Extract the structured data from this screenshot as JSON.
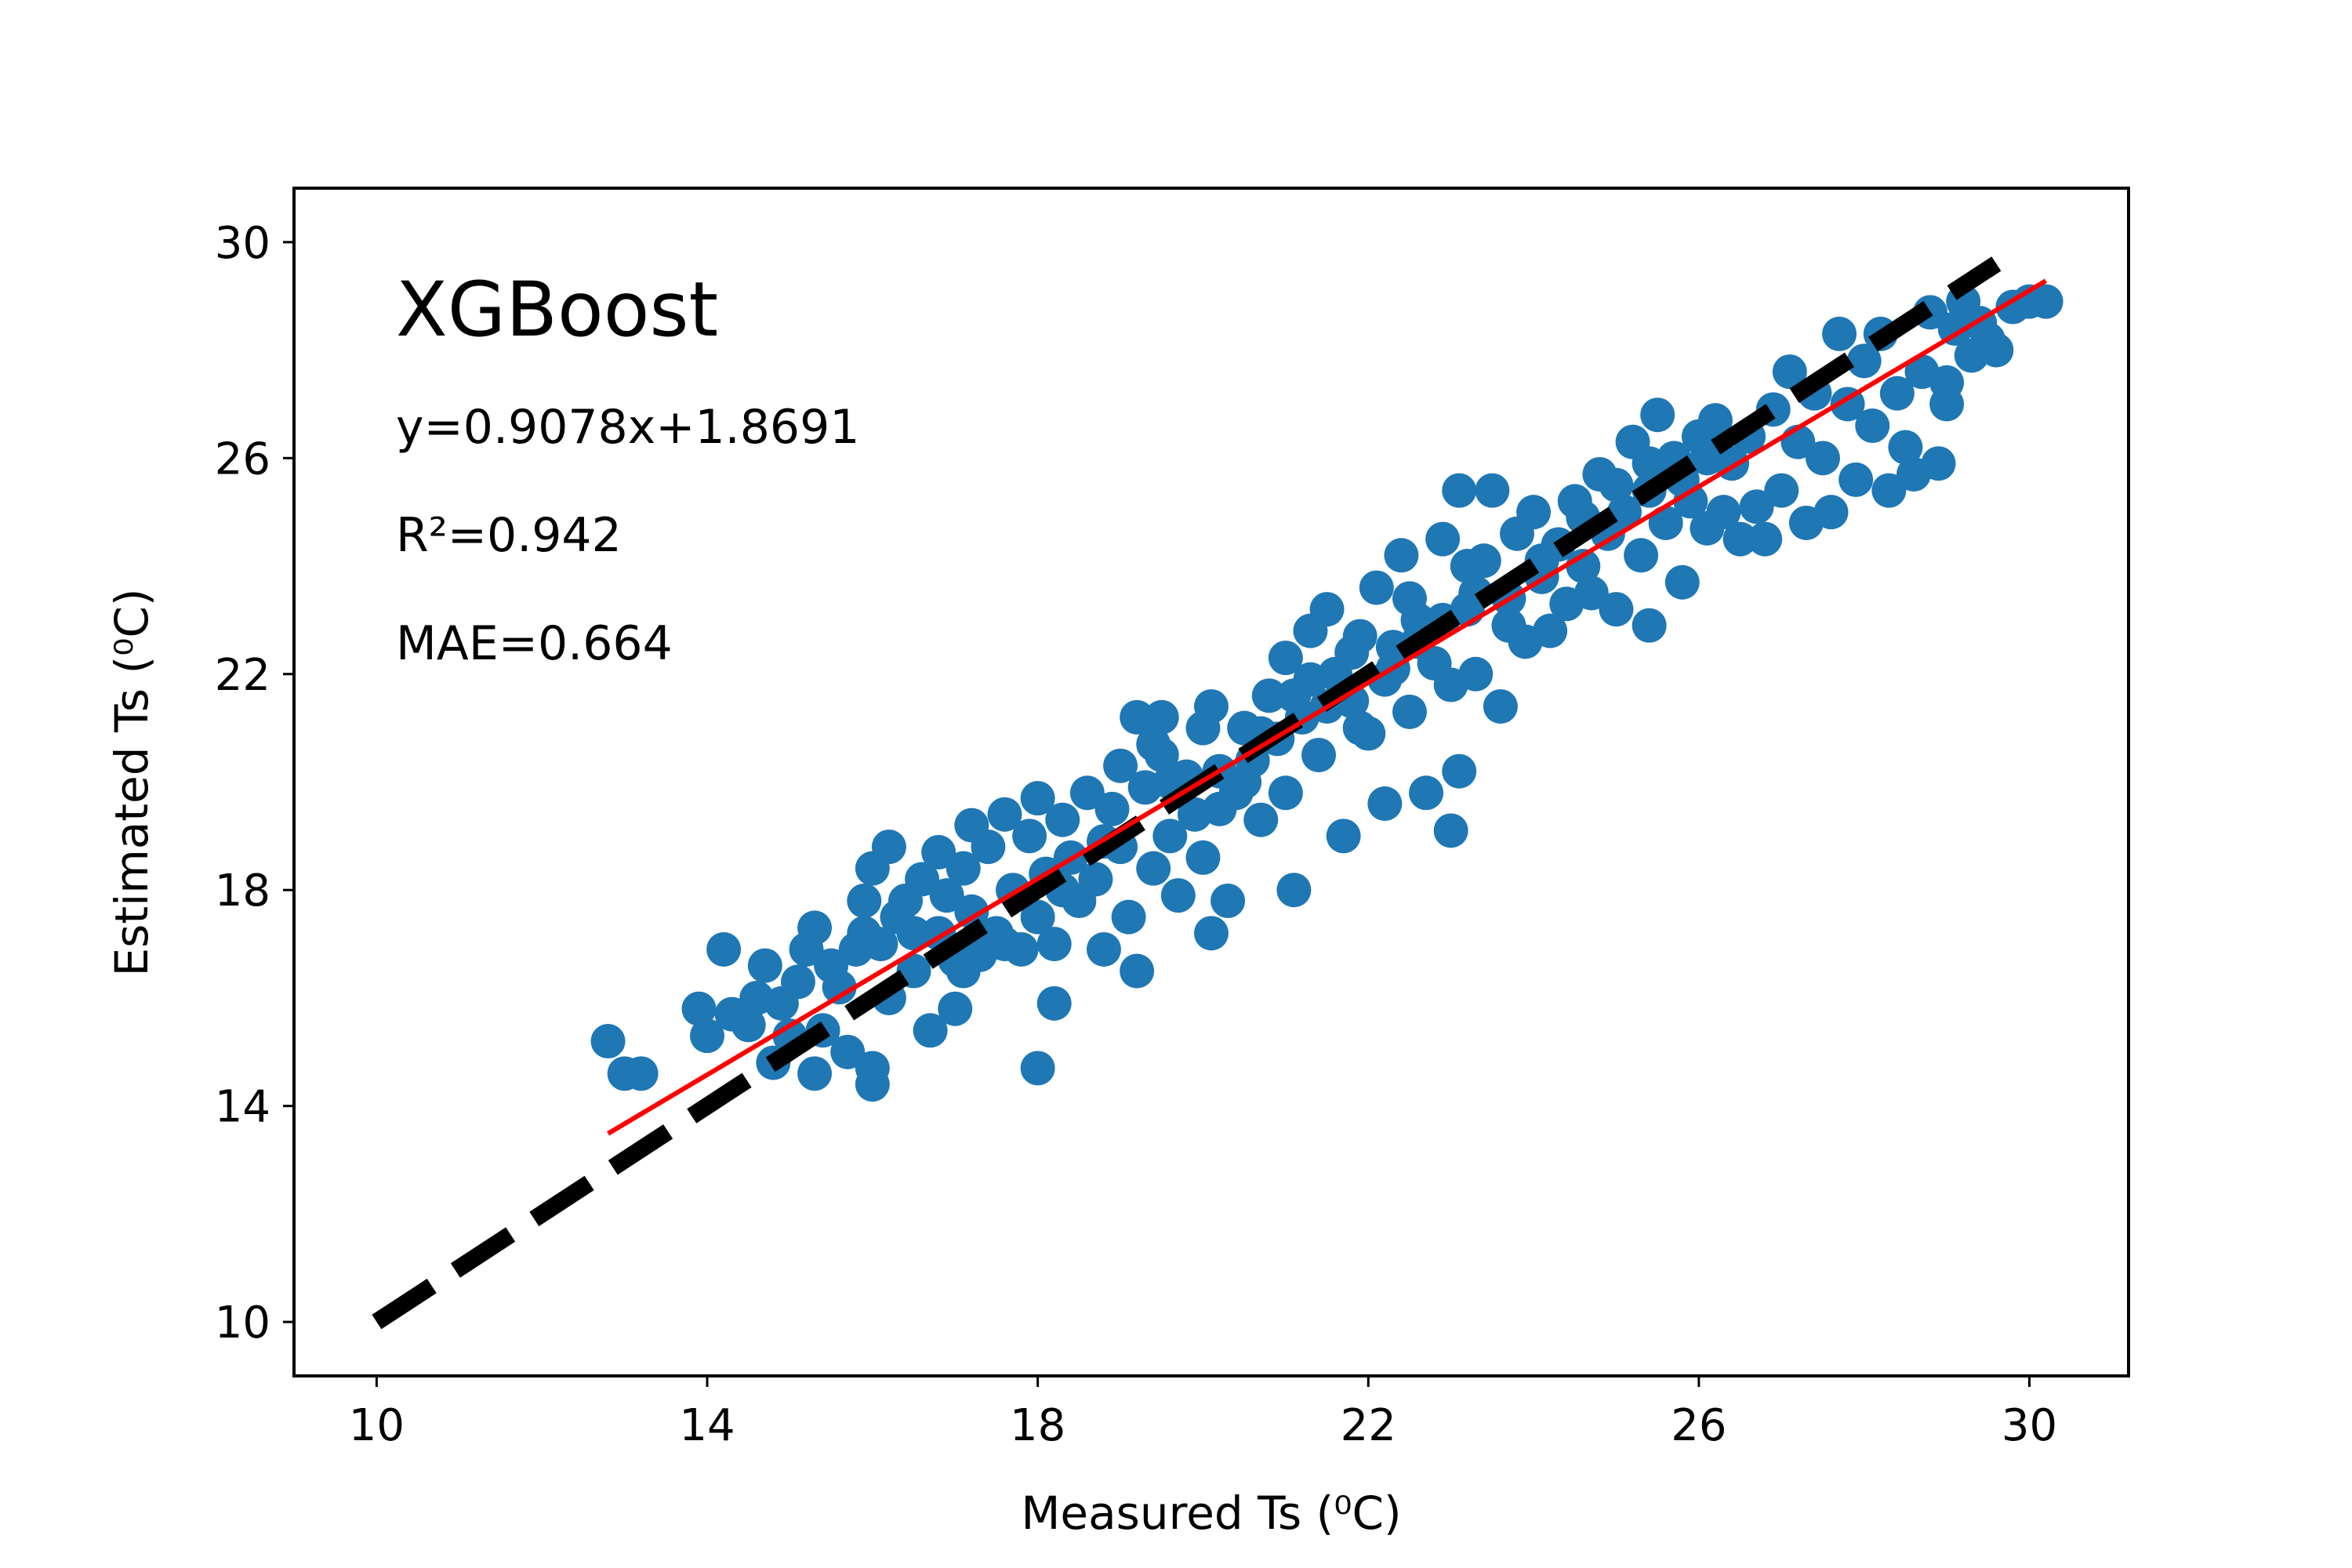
{
  "chart_data": {
    "type": "scatter",
    "title": "XGBoost",
    "annotations": [
      "y=0.9078x+1.8691",
      "R²=0.942",
      "MAE=0.664"
    ],
    "xlabel": "Measured Ts (⁰C)",
    "ylabel": "Estimated Ts (⁰C)",
    "xlim": [
      9.0,
      31.2
    ],
    "ylim": [
      9.0,
      31.0
    ],
    "xticks": [
      10,
      14,
      18,
      22,
      26,
      30
    ],
    "yticks": [
      10,
      14,
      18,
      22,
      26,
      30
    ],
    "grid": false,
    "colors": {
      "points": "#1f77b4",
      "fit_line": "#ff0000",
      "identity_line": "#000000"
    },
    "identity_line": {
      "style": "dashed",
      "x": [
        10,
        29.6
      ],
      "y": [
        10,
        29.6
      ]
    },
    "fit_line": {
      "slope": 0.9078,
      "intercept": 1.8691,
      "x": [
        12.8,
        30.2
      ]
    },
    "series": [
      {
        "values": [
          [
            12.8,
            15.2
          ],
          [
            13.0,
            14.6
          ],
          [
            13.2,
            14.6
          ],
          [
            13.9,
            15.8
          ],
          [
            14.0,
            15.3
          ],
          [
            14.2,
            16.9
          ],
          [
            14.3,
            15.7
          ],
          [
            14.5,
            15.5
          ],
          [
            14.6,
            16.0
          ],
          [
            14.7,
            16.6
          ],
          [
            14.8,
            14.8
          ],
          [
            14.9,
            15.9
          ],
          [
            15.0,
            15.3
          ],
          [
            15.1,
            16.3
          ],
          [
            15.2,
            16.9
          ],
          [
            15.3,
            17.3
          ],
          [
            15.3,
            14.6
          ],
          [
            15.4,
            15.4
          ],
          [
            15.5,
            16.6
          ],
          [
            15.6,
            16.2
          ],
          [
            15.7,
            15.0
          ],
          [
            15.8,
            16.9
          ],
          [
            15.9,
            17.2
          ],
          [
            16.0,
            18.4
          ],
          [
            16.0,
            14.7
          ],
          [
            16.0,
            14.4
          ],
          [
            16.1,
            17.0
          ],
          [
            16.2,
            18.8
          ],
          [
            16.2,
            16.0
          ],
          [
            16.3,
            17.5
          ],
          [
            16.4,
            17.8
          ],
          [
            16.5,
            16.5
          ],
          [
            16.6,
            18.2
          ],
          [
            16.7,
            15.4
          ],
          [
            16.8,
            17.2
          ],
          [
            16.8,
            18.7
          ],
          [
            16.9,
            17.9
          ],
          [
            17.0,
            15.8
          ],
          [
            17.0,
            16.7
          ],
          [
            17.1,
            18.4
          ],
          [
            17.2,
            19.2
          ],
          [
            17.2,
            17.6
          ],
          [
            17.3,
            16.8
          ],
          [
            17.4,
            18.8
          ],
          [
            17.5,
            17.2
          ],
          [
            17.6,
            19.4
          ],
          [
            17.7,
            18.0
          ],
          [
            17.8,
            16.9
          ],
          [
            17.9,
            19.0
          ],
          [
            18.0,
            17.5
          ],
          [
            18.0,
            19.7
          ],
          [
            18.0,
            14.7
          ],
          [
            18.1,
            18.3
          ],
          [
            18.2,
            15.9
          ],
          [
            18.2,
            17.0
          ],
          [
            18.3,
            19.3
          ],
          [
            18.4,
            18.6
          ],
          [
            18.5,
            17.8
          ],
          [
            18.6,
            19.8
          ],
          [
            18.7,
            18.2
          ],
          [
            18.8,
            16.9
          ],
          [
            18.9,
            19.5
          ],
          [
            19.0,
            20.3
          ],
          [
            19.0,
            18.8
          ],
          [
            19.1,
            17.5
          ],
          [
            19.2,
            21.2
          ],
          [
            19.2,
            16.5
          ],
          [
            19.3,
            19.9
          ],
          [
            19.4,
            18.4
          ],
          [
            19.5,
            21.2
          ],
          [
            19.5,
            20.5
          ],
          [
            19.6,
            19.0
          ],
          [
            19.7,
            17.9
          ],
          [
            19.8,
            20.1
          ],
          [
            19.9,
            19.4
          ],
          [
            20.0,
            18.6
          ],
          [
            20.1,
            17.2
          ],
          [
            20.1,
            21.4
          ],
          [
            20.2,
            20.2
          ],
          [
            20.3,
            17.8
          ],
          [
            20.4,
            19.8
          ],
          [
            20.5,
            21.0
          ],
          [
            20.6,
            20.4
          ],
          [
            20.7,
            19.3
          ],
          [
            20.8,
            21.6
          ],
          [
            20.9,
            20.8
          ],
          [
            21.0,
            19.8
          ],
          [
            21.0,
            22.3
          ],
          [
            21.1,
            18.0
          ],
          [
            21.2,
            21.2
          ],
          [
            21.3,
            22.8
          ],
          [
            21.4,
            20.5
          ],
          [
            21.5,
            23.2
          ],
          [
            21.6,
            22.0
          ],
          [
            21.7,
            19.0
          ],
          [
            21.8,
            21.5
          ],
          [
            21.9,
            22.7
          ],
          [
            22.0,
            20.9
          ],
          [
            22.1,
            23.6
          ],
          [
            22.2,
            21.9
          ],
          [
            22.2,
            19.6
          ],
          [
            22.3,
            22.5
          ],
          [
            22.4,
            24.2
          ],
          [
            22.5,
            21.3
          ],
          [
            22.6,
            23.0
          ],
          [
            22.7,
            19.8
          ],
          [
            22.8,
            22.2
          ],
          [
            22.9,
            24.5
          ],
          [
            23.0,
            21.8
          ],
          [
            23.0,
            19.1
          ],
          [
            23.1,
            20.2
          ],
          [
            23.1,
            25.4
          ],
          [
            23.2,
            23.2
          ],
          [
            23.3,
            22.0
          ],
          [
            23.4,
            24.1
          ],
          [
            23.5,
            25.4
          ],
          [
            23.6,
            21.4
          ],
          [
            23.7,
            23.4
          ],
          [
            23.8,
            24.6
          ],
          [
            23.9,
            22.6
          ],
          [
            24.0,
            25.0
          ],
          [
            24.1,
            23.8
          ],
          [
            24.2,
            22.8
          ],
          [
            24.3,
            24.4
          ],
          [
            24.4,
            23.3
          ],
          [
            24.5,
            25.2
          ],
          [
            24.6,
            24.0
          ],
          [
            24.7,
            23.5
          ],
          [
            24.8,
            25.7
          ],
          [
            24.9,
            24.6
          ],
          [
            25.0,
            23.2
          ],
          [
            25.1,
            25.0
          ],
          [
            25.2,
            26.3
          ],
          [
            25.3,
            24.2
          ],
          [
            25.4,
            25.4
          ],
          [
            25.4,
            22.9
          ],
          [
            25.5,
            26.8
          ],
          [
            25.6,
            24.8
          ],
          [
            25.7,
            26.0
          ],
          [
            25.8,
            23.7
          ],
          [
            25.9,
            25.2
          ],
          [
            26.0,
            26.4
          ],
          [
            26.1,
            24.7
          ],
          [
            26.2,
            26.7
          ],
          [
            26.3,
            25.0
          ],
          [
            26.4,
            25.9
          ],
          [
            26.5,
            24.5
          ],
          [
            26.6,
            26.4
          ],
          [
            26.7,
            25.1
          ],
          [
            26.8,
            24.5
          ],
          [
            26.9,
            26.9
          ],
          [
            27.0,
            25.4
          ],
          [
            27.1,
            27.6
          ],
          [
            27.2,
            26.3
          ],
          [
            27.3,
            24.8
          ],
          [
            27.4,
            27.2
          ],
          [
            27.5,
            26.0
          ],
          [
            27.6,
            25.0
          ],
          [
            27.7,
            28.3
          ],
          [
            27.8,
            27.0
          ],
          [
            27.9,
            25.6
          ],
          [
            28.0,
            27.8
          ],
          [
            28.1,
            26.6
          ],
          [
            28.2,
            28.3
          ],
          [
            28.3,
            25.4
          ],
          [
            28.4,
            27.2
          ],
          [
            28.5,
            26.2
          ],
          [
            28.6,
            25.7
          ],
          [
            28.7,
            27.6
          ],
          [
            28.8,
            28.7
          ],
          [
            28.9,
            25.9
          ],
          [
            29.0,
            27.4
          ],
          [
            29.0,
            27.0
          ],
          [
            29.1,
            28.4
          ],
          [
            29.2,
            28.9
          ],
          [
            29.3,
            27.9
          ],
          [
            29.4,
            28.5
          ],
          [
            29.5,
            28.2
          ],
          [
            29.6,
            28.0
          ],
          [
            29.8,
            28.8
          ],
          [
            30.0,
            28.9
          ],
          [
            30.2,
            28.9
          ],
          [
            15.9,
            17.8
          ],
          [
            16.5,
            17.2
          ],
          [
            17.1,
            16.5
          ],
          [
            17.6,
            17.0
          ],
          [
            18.3,
            18.0
          ],
          [
            18.8,
            18.9
          ],
          [
            19.6,
            20.0
          ],
          [
            20.2,
            19.5
          ],
          [
            20.7,
            20.9
          ],
          [
            21.1,
            21.6
          ],
          [
            21.5,
            21.4
          ],
          [
            21.9,
            21.0
          ],
          [
            22.3,
            22.1
          ],
          [
            22.6,
            22.6
          ],
          [
            22.9,
            23.0
          ],
          [
            23.3,
            23.5
          ],
          [
            23.7,
            22.9
          ],
          [
            24.1,
            24.1
          ],
          [
            24.6,
            24.9
          ],
          [
            25.0,
            25.5
          ],
          [
            25.4,
            25.9
          ],
          [
            25.8,
            25.6
          ],
          [
            26.1,
            26.0
          ],
          [
            19.4,
            20.7
          ],
          [
            20.0,
            21.0
          ],
          [
            20.5,
            20.0
          ],
          [
            21.3,
            21.9
          ],
          [
            21.8,
            22.4
          ],
          [
            22.5,
            23.4
          ],
          [
            23.2,
            24.0
          ]
        ]
      }
    ]
  }
}
